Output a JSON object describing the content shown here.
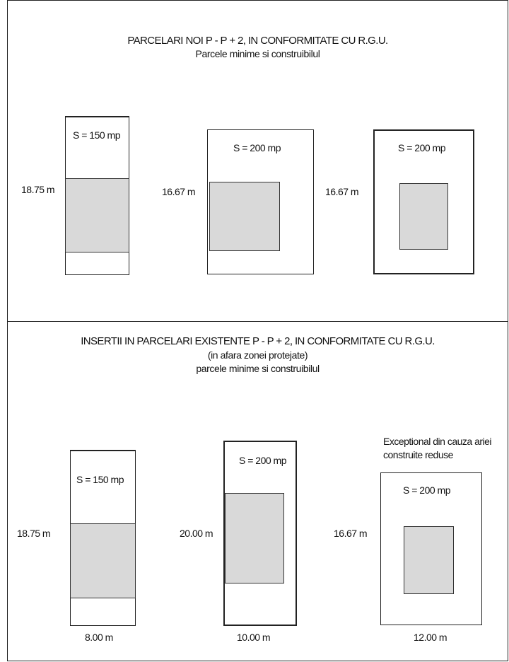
{
  "top": {
    "title": "PARCELARI NOI P - P + 2, IN CONFORMITATE CU  R.G.U.",
    "subtitle": "Parcele minime si construibilul",
    "lots": [
      {
        "area_label": "S = 150 mp",
        "depth_label": "18.75 m"
      },
      {
        "area_label": "S = 200 mp",
        "depth_label": "16.67 m"
      },
      {
        "area_label": "S = 200 mp",
        "depth_label": "16.67 m"
      }
    ]
  },
  "bottom": {
    "title": "INSERTII IN PARCELARI EXISTENTE  P - P + 2, IN CONFORMITATE CU  R.G.U.",
    "subtitle1": "(in afara zonei protejate)",
    "subtitle2": "parcele minime si construibilul",
    "note_line1": "Exceptional din cauza ariei",
    "note_line2": "construite reduse",
    "lots": [
      {
        "area_label": "S = 150 mp",
        "depth_label": "18.75 m",
        "width_label": "8.00 m"
      },
      {
        "area_label": "S = 200 mp",
        "depth_label": "20.00 m",
        "width_label": "10.00 m"
      },
      {
        "area_label": "S = 200 mp",
        "depth_label": "16.67 m",
        "width_label": "12.00 m"
      }
    ]
  }
}
